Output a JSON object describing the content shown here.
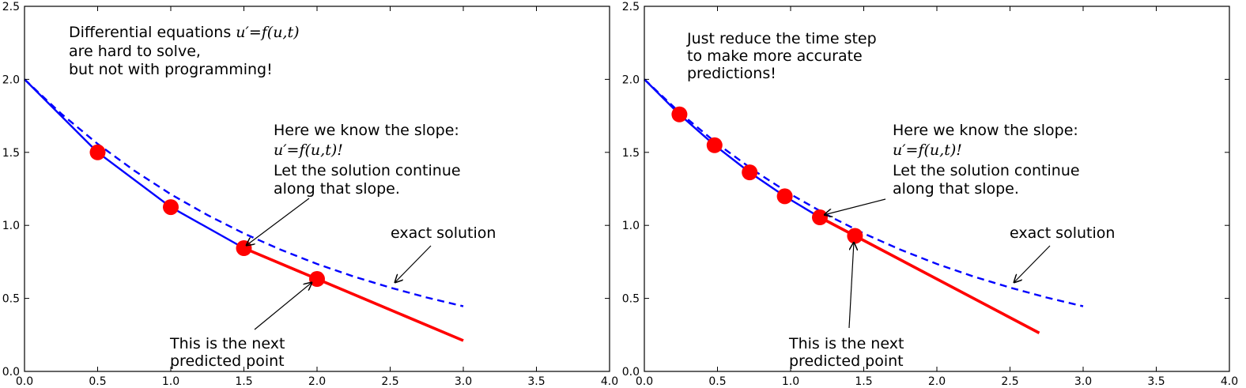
{
  "chart_data": [
    {
      "type": "line",
      "xlim": [
        0.0,
        4.0
      ],
      "ylim": [
        0.0,
        2.5
      ],
      "x_ticks": [
        "0.0",
        "0.5",
        "1.0",
        "1.5",
        "2.0",
        "2.5",
        "3.0",
        "3.5",
        "4.0"
      ],
      "y_ticks": [
        "0.0",
        "0.5",
        "1.0",
        "1.5",
        "2.0",
        "2.5"
      ],
      "grid": false,
      "colors": {
        "numerical": "#0000ff",
        "exact": "#0000ff",
        "extrapolation": "#ff0000",
        "points": "#ff0000"
      },
      "series": [
        {
          "style": "dashed",
          "x": [
            0.0,
            0.25,
            0.5,
            0.75,
            1.0,
            1.25,
            1.5,
            1.75,
            2.0,
            2.25,
            2.5,
            2.75,
            3.0
          ],
          "y": [
            2.0,
            1.765,
            1.558,
            1.375,
            1.213,
            1.071,
            0.945,
            0.834,
            0.736,
            0.65,
            0.574,
            0.506,
            0.446
          ]
        },
        {
          "style": "solid",
          "x": [
            0.0,
            0.5,
            1.0,
            1.5
          ],
          "y": [
            2.0,
            1.5,
            1.125,
            0.844
          ]
        },
        {
          "style": "solid-thick",
          "x": [
            1.5,
            3.0
          ],
          "y": [
            0.844,
            0.211
          ]
        },
        {
          "style": "markers",
          "x": [
            0.5,
            1.0,
            1.5,
            2.0
          ],
          "y": [
            1.5,
            1.125,
            0.844,
            0.633
          ]
        }
      ],
      "texts": {
        "title_lines": [
          "Differential equations",
          "are hard to solve,",
          "but not with programming!"
        ],
        "title_math": "u′=f(u,t)",
        "slope_lines": [
          "Here we know the slope:",
          "u′=f(u,t)!",
          "Let the solution continue",
          "along that slope."
        ],
        "exact_label": "exact solution",
        "next_lines": [
          "This is the next",
          "predicted point"
        ]
      }
    },
    {
      "type": "line",
      "xlim": [
        0.0,
        4.0
      ],
      "ylim": [
        0.0,
        2.5
      ],
      "x_ticks": [
        "0.0",
        "0.5",
        "1.0",
        "1.5",
        "2.0",
        "2.5",
        "3.0",
        "3.5",
        "4.0"
      ],
      "y_ticks": [
        "0.0",
        "0.5",
        "1.0",
        "1.5",
        "2.0",
        "2.5"
      ],
      "grid": false,
      "colors": {
        "numerical": "#0000ff",
        "exact": "#0000ff",
        "extrapolation": "#ff0000",
        "points": "#ff0000"
      },
      "series": [
        {
          "style": "dashed",
          "x": [
            0.0,
            0.25,
            0.5,
            0.75,
            1.0,
            1.25,
            1.5,
            1.75,
            2.0,
            2.25,
            2.5,
            2.75,
            3.0
          ],
          "y": [
            2.0,
            1.765,
            1.558,
            1.375,
            1.213,
            1.071,
            0.945,
            0.834,
            0.736,
            0.65,
            0.574,
            0.506,
            0.446
          ]
        },
        {
          "style": "solid",
          "x": [
            0.0,
            0.24,
            0.48,
            0.72,
            0.96,
            1.2
          ],
          "y": [
            2.0,
            1.76,
            1.549,
            1.363,
            1.199,
            1.055
          ]
        },
        {
          "style": "solid-thick",
          "x": [
            1.2,
            2.7
          ],
          "y": [
            1.055,
            0.263
          ]
        },
        {
          "style": "markers",
          "x": [
            0.24,
            0.48,
            0.72,
            0.96,
            1.2,
            1.44
          ],
          "y": [
            1.76,
            1.549,
            1.363,
            1.199,
            1.055,
            0.928
          ]
        }
      ],
      "texts": {
        "title_lines": [
          "Just reduce the time step",
          "to make more accurate",
          "predictions!"
        ],
        "slope_lines": [
          "Here we know the slope:",
          "u′=f(u,t)!",
          "Let the solution continue",
          "along that slope."
        ],
        "exact_label": "exact solution",
        "next_lines": [
          "This is the next",
          "predicted point"
        ]
      }
    }
  ]
}
